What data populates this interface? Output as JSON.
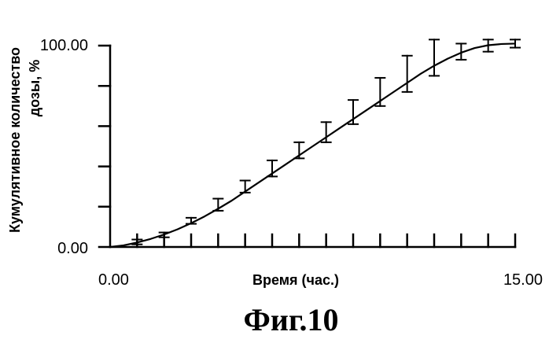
{
  "chart_data": {
    "type": "line",
    "caption": "Фиг.10",
    "xlabel": "Время (час.)",
    "ylabel_line1": "Кумулятивное количество",
    "ylabel_line2": "дозы, %",
    "xlim": [
      0,
      15
    ],
    "ylim": [
      0,
      100
    ],
    "x_tick_labels": [
      "0.00",
      "15.00"
    ],
    "y_tick_labels": [
      "0.00",
      "100.00"
    ],
    "grid": false,
    "series": [
      {
        "x": [
          1,
          2,
          3,
          4,
          5,
          6,
          7,
          8,
          9,
          10,
          11,
          12,
          13,
          14,
          15
        ],
        "y": [
          2.5,
          6,
          13,
          21,
          30,
          39,
          48,
          57,
          67,
          77,
          86,
          94,
          97,
          100,
          101
        ],
        "err": [
          1.2,
          1.2,
          1.5,
          3,
          3,
          4,
          4,
          5,
          6,
          7,
          9,
          9,
          4,
          3,
          2
        ]
      }
    ],
    "curve": {
      "x": [
        0,
        0.5,
        1,
        1.5,
        2,
        2.5,
        3,
        3.5,
        4,
        4.5,
        5,
        5.5,
        6,
        6.5,
        7,
        7.5,
        8,
        8.5,
        9,
        9.5,
        10,
        10.5,
        11,
        11.5,
        12,
        12.5,
        13,
        13.5,
        14,
        14.5,
        15
      ],
      "y": [
        0,
        0.8,
        2.2,
        4,
        6.2,
        8.8,
        11.8,
        15.2,
        19,
        23,
        27.5,
        32,
        36.5,
        41,
        45.5,
        50,
        54.5,
        59,
        63.5,
        68,
        72.5,
        77,
        81.5,
        86,
        90,
        93.5,
        96.5,
        98.8,
        100.2,
        100.8,
        101
      ]
    }
  }
}
